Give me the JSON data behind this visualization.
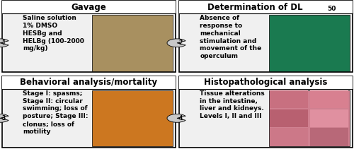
{
  "panels": [
    {
      "id": 1,
      "title": "Gavage",
      "subscript": "",
      "text": "Saline solution\n1% DMSO\nHESBg and\nHELBg (100-2000\nmg/kg)",
      "img_color": "#a89060",
      "l": 0.005,
      "b": 0.515,
      "r": 0.495,
      "t": 0.995
    },
    {
      "id": 2,
      "title": "Determination of DL",
      "subscript": "50",
      "text": "Absence of\nresponse to\nmechanical\nstimulation and\nmovement of the\noperculum",
      "img_color": "#1a7a50",
      "l": 0.505,
      "b": 0.515,
      "r": 0.995,
      "t": 0.995
    },
    {
      "id": 3,
      "title": "Behavioral analysis/mortality",
      "subscript": "",
      "text": "Stage I: spasms;\nStage II: circular\nswimming; loss of\nposture; Stage III:\nclonus; loss of\nmotility",
      "img_color": "#cc7720",
      "l": 0.005,
      "b": 0.01,
      "r": 0.495,
      "t": 0.49
    },
    {
      "id": 4,
      "title": "Histopathological analysis",
      "subscript": "",
      "text": "Tissue alterations\nin the intestine,\nliver and kidneys.\nLevels I, II and III",
      "img_color": "#d08090",
      "l": 0.505,
      "b": 0.01,
      "r": 0.995,
      "t": 0.49
    }
  ],
  "bg_color": "#ffffff",
  "border_color": "#000000",
  "panel_bg": "#f0f0f0",
  "title_bg": "#ffffff",
  "text_color": "#000000",
  "panel_border_lw": 1.2,
  "title_fontsize": 8.5,
  "body_fontsize": 6.5,
  "tissue_colors": [
    "#c87080",
    "#d88090",
    "#b86070",
    "#e090a0",
    "#cc7888",
    "#b86878"
  ]
}
